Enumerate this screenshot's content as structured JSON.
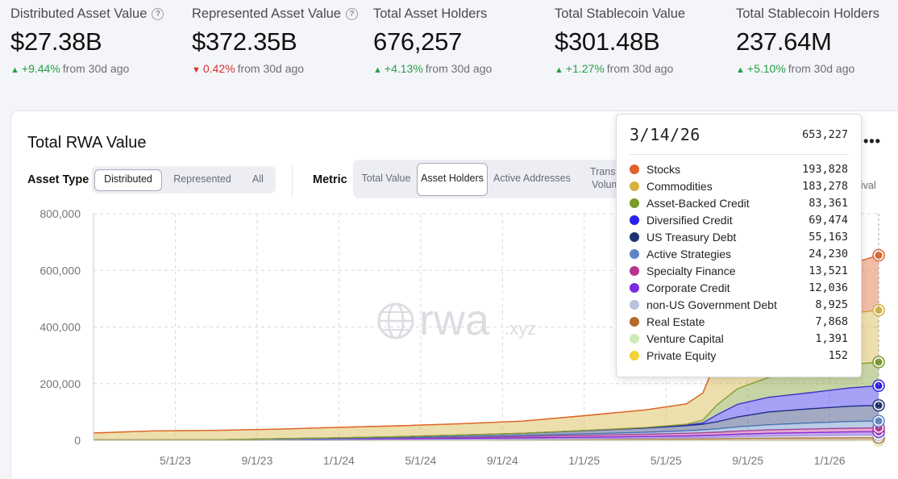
{
  "kpis": [
    {
      "label": "Distributed Asset Value",
      "has_help": true,
      "value": "$27.38B",
      "direction": "up",
      "change": "+9.44%",
      "since": "from 30d ago"
    },
    {
      "label": "Represented Asset Value",
      "has_help": true,
      "value": "$372.35B",
      "direction": "down",
      "change": "0.42%",
      "since": "from 30d ago"
    },
    {
      "label": "Total Asset Holders",
      "has_help": false,
      "value": "676,257",
      "direction": "up",
      "change": "+4.13%",
      "since": "from 30d ago"
    },
    {
      "label": "Total Stablecoin Value",
      "has_help": false,
      "value": "$301.48B",
      "direction": "up",
      "change": "+1.27%",
      "since": "from 30d ago"
    },
    {
      "label": "Total Stablecoin Holders",
      "has_help": false,
      "value": "237.64M",
      "direction": "up",
      "change": "+5.10%",
      "since": "from 30d ago"
    }
  ],
  "card": {
    "title": "Total RWA Value",
    "more_label": "•••",
    "asset_type_label": "Asset Type",
    "asset_types": [
      {
        "label": "Distributed",
        "active": true
      },
      {
        "label": "Represented",
        "active": false
      },
      {
        "label": "All",
        "active": false
      }
    ],
    "metric_label": "Metric",
    "metrics": [
      {
        "label": "Total Value",
        "active": false
      },
      {
        "label": "Asset Holders",
        "active": true
      },
      {
        "label": "Active Addresses",
        "active": false
      },
      {
        "label": "Transfer Volume",
        "active": false
      }
    ],
    "clipped_option": "quival"
  },
  "watermark": {
    "main": "rwa",
    "suffix": ".xyz"
  },
  "tooltip": {
    "date": "3/14/26",
    "total": "653,227",
    "items": [
      {
        "name": "Stocks",
        "value": "193,828",
        "color": "#e0622a"
      },
      {
        "name": "Commodities",
        "value": "183,278",
        "color": "#d4b23c"
      },
      {
        "name": "Asset-Backed Credit",
        "value": "83,361",
        "color": "#7a9a2a"
      },
      {
        "name": "Diversified Credit",
        "value": "69,474",
        "color": "#2c1fe8"
      },
      {
        "name": "US Treasury Debt",
        "value": "55,163",
        "color": "#1f3270"
      },
      {
        "name": "Active Strategies",
        "value": "24,230",
        "color": "#5b85c4"
      },
      {
        "name": "Specialty Finance",
        "value": "13,521",
        "color": "#b8338f"
      },
      {
        "name": "Corporate Credit",
        "value": "12,036",
        "color": "#7a2ce0"
      },
      {
        "name": "non-US Government Debt",
        "value": "8,925",
        "color": "#b9c3dc"
      },
      {
        "name": "Real Estate",
        "value": "7,868",
        "color": "#b36a2c"
      },
      {
        "name": "Venture Capital",
        "value": "1,391",
        "color": "#cdeab8"
      },
      {
        "name": "Private Equity",
        "value": "152",
        "color": "#f0d335"
      }
    ]
  },
  "chart_data": {
    "type": "area",
    "stacked": true,
    "title": "Total RWA Value",
    "metric": "Asset Holders",
    "ylim": [
      0,
      800000
    ],
    "yticks": [
      0,
      200000,
      400000,
      600000,
      800000
    ],
    "ytick_labels": [
      "0",
      "200,000",
      "400,000",
      "600,000",
      "800,000"
    ],
    "xlim": [
      0,
      38.4
    ],
    "x_unit": "months since 2023-01-01",
    "xticks": [
      4,
      8,
      12,
      16,
      20,
      24,
      28,
      32,
      36
    ],
    "xtick_labels": [
      "5/1/23",
      "9/1/23",
      "1/1/24",
      "5/1/24",
      "9/1/24",
      "1/1/25",
      "5/1/25",
      "9/1/25",
      "1/1/26"
    ],
    "x": [
      0,
      3,
      6,
      9,
      12,
      15,
      18,
      21,
      24,
      27,
      29,
      29.8,
      30.5,
      31.5,
      33,
      35,
      37,
      38.4
    ],
    "series": [
      {
        "name": "Private Equity",
        "color": "#f0d335",
        "values": [
          0,
          0,
          0,
          0,
          0,
          0,
          0,
          0,
          0,
          0,
          0,
          0,
          0,
          50,
          100,
          130,
          140,
          152
        ]
      },
      {
        "name": "Venture Capital",
        "color": "#cdeab8",
        "values": [
          0,
          0,
          0,
          0,
          0,
          0,
          0,
          0,
          0,
          0,
          0,
          200,
          400,
          700,
          1000,
          1200,
          1350,
          1391
        ]
      },
      {
        "name": "Real Estate",
        "color": "#b36a2c",
        "values": [
          1000,
          1200,
          1500,
          1800,
          2200,
          2700,
          3200,
          3800,
          4300,
          4800,
          5200,
          5400,
          5600,
          6100,
          6700,
          7200,
          7700,
          7868
        ]
      },
      {
        "name": "non-US Government Debt",
        "color": "#b9c3dc",
        "values": [
          0,
          0,
          0,
          0,
          0,
          0,
          0,
          500,
          1000,
          2000,
          3000,
          3500,
          4000,
          5000,
          6500,
          7500,
          8500,
          8925
        ]
      },
      {
        "name": "Corporate Credit",
        "color": "#7a2ce0",
        "values": [
          0,
          0,
          0,
          500,
          1500,
          2500,
          3500,
          4500,
          5500,
          6500,
          7500,
          8000,
          8500,
          9500,
          10500,
          11200,
          11800,
          12036
        ]
      },
      {
        "name": "Specialty Finance",
        "color": "#b8338f",
        "values": [
          0,
          0,
          0,
          1000,
          2000,
          3000,
          4000,
          5000,
          6500,
          8000,
          9000,
          9500,
          10000,
          11000,
          12000,
          12800,
          13300,
          13521
        ]
      },
      {
        "name": "Active Strategies",
        "color": "#5b85c4",
        "values": [
          0,
          0,
          0,
          0,
          0,
          1000,
          2000,
          3000,
          5000,
          7000,
          9000,
          10000,
          12000,
          15000,
          18000,
          21000,
          23500,
          24230
        ]
      },
      {
        "name": "US Treasury Debt",
        "color": "#1f3270",
        "values": [
          0,
          0,
          500,
          2000,
          3000,
          4000,
          6000,
          8000,
          12000,
          15000,
          18000,
          20000,
          25000,
          35000,
          45000,
          50000,
          54000,
          55163
        ]
      },
      {
        "name": "Diversified Credit",
        "color": "#2c1fe8",
        "values": [
          0,
          0,
          0,
          0,
          0,
          0,
          0,
          0,
          500,
          1000,
          2000,
          5000,
          25000,
          45000,
          52000,
          57000,
          65000,
          69474
        ]
      },
      {
        "name": "Asset-Backed Credit",
        "color": "#7a9a2a",
        "values": [
          0,
          0,
          0,
          0,
          0,
          0,
          0,
          0,
          0,
          1000,
          3000,
          10000,
          35000,
          55000,
          70000,
          78000,
          82000,
          83361
        ]
      },
      {
        "name": "Commodities",
        "color": "#d4b23c",
        "values": [
          25000,
          32000,
          33000,
          34000,
          37000,
          38000,
          40000,
          43000,
          52000,
          62000,
          72000,
          95000,
          160000,
          170000,
          172000,
          176000,
          180000,
          183278
        ]
      },
      {
        "name": "Stocks",
        "color": "#e0622a",
        "values": [
          0,
          0,
          0,
          0,
          0,
          0,
          0,
          0,
          0,
          0,
          0,
          500,
          5000,
          30000,
          80000,
          130000,
          175000,
          193828
        ]
      }
    ]
  }
}
